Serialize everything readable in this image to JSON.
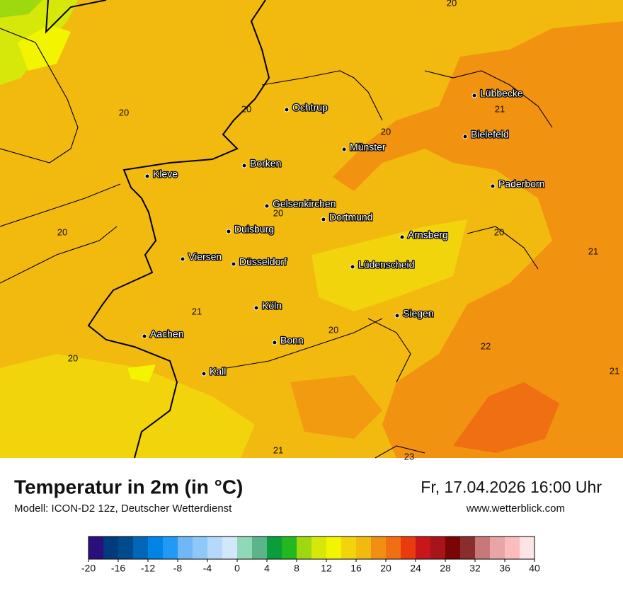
{
  "map": {
    "cities": [
      "Lübbecke",
      "Bielefeld",
      "Ochtrup",
      "Münster",
      "Borken",
      "Kleve",
      "Paderborn",
      "Gelsenkirchen",
      "Dortmund",
      "Duisburg",
      "Arnsberg",
      "Viersen",
      "Düsseldorf",
      "Lüdenscheid",
      "Köln",
      "Siegen",
      "Aachen",
      "Bonn",
      "Kall"
    ],
    "contour_labels": [
      20,
      20,
      20,
      20,
      21,
      20,
      20,
      20,
      21,
      21,
      20,
      20,
      22,
      21,
      21,
      23
    ]
  },
  "footer": {
    "title": "Temperatur in 2m (in °C)",
    "model": "Modell: ICON-D2 12z, Deutscher Wetterdienst",
    "datetime": "Fr, 17.04.2026 16:00 Uhr",
    "website": "www.wetterblick.com"
  },
  "colorbar": {
    "colors": [
      "#2b0f7e",
      "#003b7e",
      "#004a8e",
      "#0066b8",
      "#0085e6",
      "#2299f5",
      "#6fb8f5",
      "#8ec8f8",
      "#b5d9fa",
      "#d3e7fb",
      "#90d9b8",
      "#5cb58a",
      "#0a9e3a",
      "#23b820",
      "#9ed80f",
      "#d6e80a",
      "#f3f500",
      "#f2d40c",
      "#f2b90f",
      "#f28e12",
      "#f06f12",
      "#e83c0e",
      "#c8161a",
      "#a8141a",
      "#7a0505",
      "#8a2d2d",
      "#c87878",
      "#e8a5a5",
      "#fbbcbc",
      "#fde4e4"
    ],
    "ticks": [
      -20,
      -16,
      -12,
      -8,
      -4,
      0,
      4,
      8,
      12,
      16,
      20,
      24,
      28,
      32,
      36,
      40
    ]
  }
}
